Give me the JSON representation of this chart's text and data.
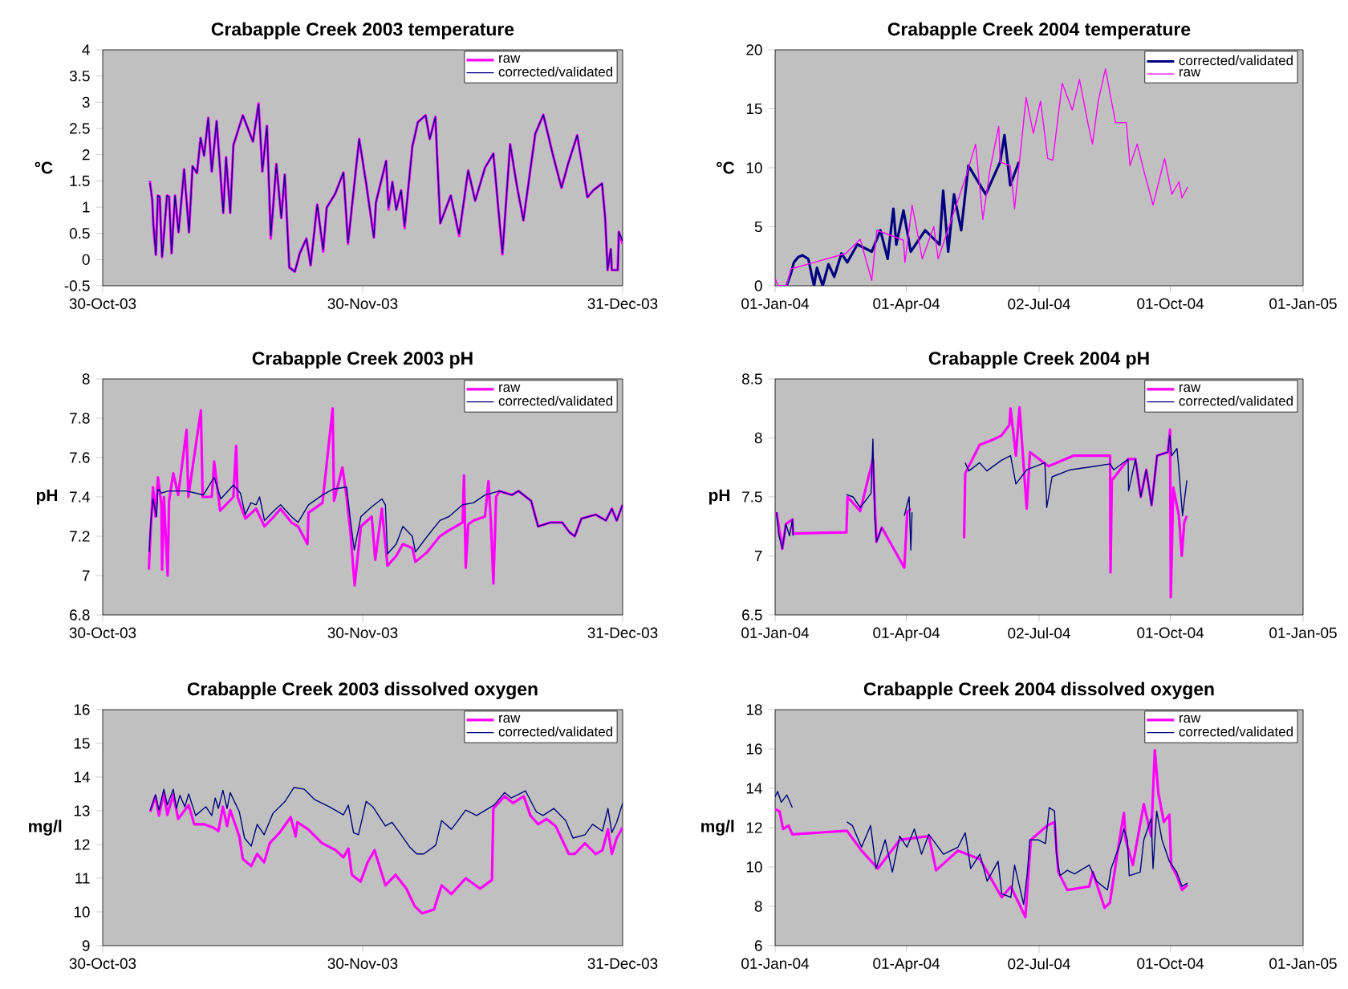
{
  "chart_data": [
    {
      "type": "line",
      "title": "Crabapple Creek 2003 temperature",
      "ylabel": "°C",
      "legend": "top right",
      "xlim": [
        "2003-10-30",
        "2003-12-31"
      ],
      "xticks": [
        {
          "value": "2003-10-30",
          "label": "30-Oct-03"
        },
        {
          "value": "2003-11-30",
          "label": "30-Nov-03"
        },
        {
          "value": "2003-12-31",
          "label": "31-Dec-03"
        }
      ],
      "ylim": [
        -0.5,
        4
      ],
      "yticks": [
        -0.5,
        0,
        0.5,
        1,
        1.5,
        2,
        2.5,
        3,
        3.5,
        4
      ],
      "x": [
        "2003-11-04T15:00",
        "2003-11-04T22:00",
        "2003-11-05T01:00",
        "2003-11-05T08:00",
        "2003-11-05T14:00",
        "2003-11-05T19:00",
        "2003-11-06T02:00",
        "2003-11-06T16:00",
        "2003-11-06T22:00",
        "2003-11-07T05:00",
        "2003-11-07T15:00",
        "2003-11-08T01:00",
        "2003-11-08T09:00",
        "2003-11-08T17:00",
        "2003-11-09T07:00",
        "2003-11-09T17:00",
        "2003-11-10T06:00",
        "2003-11-10T16:00",
        "2003-11-11T02:00",
        "2003-11-11T14:00",
        "2003-11-12T00:00",
        "2003-11-12T14:00",
        "2003-11-13T09:00",
        "2003-11-13T17:00",
        "2003-11-14T05:00",
        "2003-11-14T14:00",
        "2003-11-15T17:00",
        "2003-11-16T22:00",
        "2003-11-17T14:00",
        "2003-11-18T01:00",
        "2003-11-18T14:00",
        "2003-11-19T01:00",
        "2003-11-19T17:00",
        "2003-11-20T07:00",
        "2003-11-20T17:00",
        "2003-11-21T06:00",
        "2003-11-21T22:00",
        "2003-11-22T12:00",
        "2003-11-23T07:00",
        "2003-11-23T19:00",
        "2003-11-24T14:00",
        "2003-11-25T07:00",
        "2003-11-25T17:00",
        "2003-11-26T17:00",
        "2003-11-27T17:00",
        "2003-11-28T06:00",
        "2003-11-29T14:00",
        "2003-11-30T10:00",
        "2003-12-01T08:00",
        "2003-12-01T14:00",
        "2003-12-02T19:00",
        "2003-12-03T02:00",
        "2003-12-03T13:00",
        "2003-12-04T00:00",
        "2003-12-04T14:00",
        "2003-12-05T00:00",
        "2003-12-05T22:00",
        "2003-12-06T14:00",
        "2003-12-07T12:00",
        "2003-12-08T00:00",
        "2003-12-08T16:00",
        "2003-12-09T06:00",
        "2003-12-10T12:00",
        "2003-12-11T12:00",
        "2003-12-12T14:00",
        "2003-12-13T10:00",
        "2003-12-14T14:00",
        "2003-12-15T14:00",
        "2003-12-16T16:00",
        "2003-12-17T14:00",
        "2003-12-18T10:00",
        "2003-12-19T04:00",
        "2003-12-20T14:00",
        "2003-12-21T13:00",
        "2003-12-22T17:00",
        "2003-12-23T17:00",
        "2003-12-24T13:00",
        "2003-12-25T14:00",
        "2003-12-26T19:00",
        "2003-12-27T12:00",
        "2003-12-28T13:00",
        "2003-12-28T22:00",
        "2003-12-29T05:00",
        "2003-12-29T14:00",
        "2003-12-29T17:00",
        "2003-12-30T10:00",
        "2003-12-30T13:00",
        "2003-12-31T00:00"
      ],
      "series": [
        {
          "name": "raw",
          "color": "#ff00ff",
          "values": [
            1.5,
            1.12,
            0.65,
            0.09,
            1.22,
            1.2,
            0.05,
            1.22,
            1.2,
            0.12,
            1.22,
            0.52,
            1.12,
            1.72,
            0.52,
            1.78,
            1.65,
            2.32,
            1.98,
            2.7,
            1.68,
            2.64,
            0.89,
            1.95,
            0.89,
            2.18,
            2.75,
            2.25,
            2.98,
            1.68,
            2.55,
            0.4,
            1.82,
            0.79,
            1.62,
            -0.15,
            -0.23,
            0.12,
            0.4,
            -0.11,
            1.05,
            0.15,
            0.99,
            1.25,
            1.66,
            0.3,
            2.3,
            1.45,
            0.42,
            1.09,
            1.88,
            0.95,
            1.48,
            0.95,
            1.32,
            0.6,
            2.15,
            2.62,
            2.75,
            2.3,
            2.72,
            0.69,
            1.22,
            0.45,
            1.7,
            1.12,
            1.75,
            2.02,
            0.1,
            2.2,
            1.38,
            0.75,
            2.4,
            2.76,
            1.98,
            1.37,
            1.85,
            2.37,
            1.19,
            1.32,
            1.45,
            0.79,
            -0.2,
            0.2,
            -0.2,
            -0.2,
            0.53,
            0.3
          ]
        },
        {
          "name": "corrected/validated",
          "color": "#000080",
          "values": [
            1.46,
            1.12,
            0.69,
            0.09,
            1.22,
            1.2,
            0.05,
            1.22,
            1.2,
            0.12,
            1.22,
            0.52,
            1.12,
            1.72,
            0.52,
            1.78,
            1.65,
            2.32,
            1.98,
            2.7,
            1.68,
            2.64,
            0.89,
            1.95,
            0.89,
            2.18,
            2.75,
            2.25,
            2.96,
            1.68,
            2.55,
            0.45,
            1.82,
            0.79,
            1.62,
            -0.15,
            -0.23,
            0.12,
            0.4,
            -0.11,
            1.05,
            0.19,
            0.99,
            1.25,
            1.66,
            0.32,
            2.3,
            1.45,
            0.42,
            1.09,
            1.88,
            0.99,
            1.48,
            0.95,
            1.32,
            0.64,
            2.15,
            2.62,
            2.75,
            2.3,
            2.72,
            0.69,
            1.22,
            0.49,
            1.7,
            1.12,
            1.75,
            2.02,
            0.12,
            2.2,
            1.38,
            0.75,
            2.4,
            2.76,
            1.98,
            1.37,
            1.85,
            2.37,
            1.19,
            1.32,
            1.45,
            0.79,
            -0.2,
            0.2,
            -0.2,
            -0.2,
            0.53,
            0.35
          ]
        }
      ]
    },
    {
      "type": "line",
      "title": "Crabapple Creek 2004 temperature",
      "ylabel": "°C",
      "legend": "top right",
      "xlim": [
        "2004-01-01",
        "2005-01-01"
      ],
      "xticks": [
        {
          "value": "2004-01-01",
          "label": "01-Jan-04"
        },
        {
          "value": "2004-04-01",
          "label": "01-Apr-04"
        },
        {
          "value": "2004-07-02",
          "label": "02-Jul-04"
        },
        {
          "value": "2004-10-01",
          "label": "01-Oct-04"
        },
        {
          "value": "2005-01-01",
          "label": "01-Jan-05"
        }
      ],
      "ylim": [
        0,
        20
      ],
      "yticks": [
        0,
        5,
        10,
        15,
        20
      ],
      "series": [
        {
          "name": "corrected/validated",
          "color": "#000080",
          "x": [
            "2004-01-09",
            "2004-01-12",
            "2004-01-14",
            "2004-01-17",
            "2004-01-20",
            "2004-01-24",
            "2004-01-28",
            "2004-01-30",
            "2004-02-03",
            "2004-02-07",
            "2004-02-11",
            "2004-02-16",
            "2004-02-20",
            "2004-02-27",
            "2004-03-08",
            "2004-03-14",
            "2004-03-19",
            "2004-03-23",
            "2004-03-25",
            "2004-03-30",
            "2004-04-04",
            "2004-04-14",
            "2004-04-24",
            "2004-04-26T12:00",
            "2004-04-30",
            "2004-05-04",
            "2004-05-09",
            "2004-05-14",
            "2004-05-26",
            "2004-06-05",
            "2004-06-08",
            "2004-06-12",
            "2004-06-18"
          ],
          "values": [
            0,
            1.06,
            1.98,
            2.43,
            2.58,
            2.28,
            0,
            1.52,
            0,
            1.82,
            0.76,
            2.74,
            1.98,
            3.5,
            2.89,
            4.71,
            2.28,
            6.53,
            3.5,
            6.38,
            2.89,
            4.71,
            3.5,
            8.05,
            2.89,
            7.75,
            4.71,
            10.18,
            7.75,
            10.49,
            12.77,
            8.51,
            10.49
          ]
        },
        {
          "name": "raw",
          "color": "#ff00ff",
          "x": [
            "2004-01-01",
            "2004-01-03",
            "2004-01-09",
            "2004-01-12",
            "2004-02-19",
            "2004-02-29",
            "2004-03-08",
            "2004-03-11T12:00",
            "2004-03-30",
            "2004-03-31",
            "2004-04-05",
            "2004-04-12",
            "2004-04-20",
            "2004-04-23",
            "2004-05-11T12:00",
            "2004-05-19",
            "2004-05-24",
            "2004-05-29",
            "2004-06-04",
            "2004-06-05",
            "2004-06-12",
            "2004-06-15",
            "2004-06-23",
            "2004-06-28",
            "2004-07-03",
            "2004-07-08",
            "2004-07-11T12:00",
            "2004-07-18",
            "2004-07-25",
            "2004-07-30",
            "2004-08-05",
            "2004-08-08",
            "2004-08-12",
            "2004-08-17",
            "2004-08-20",
            "2004-08-24",
            "2004-08-31T12:00",
            "2004-09-03",
            "2004-09-08",
            "2004-09-13",
            "2004-09-19",
            "2004-09-27",
            "2004-10-02",
            "2004-10-07",
            "2004-10-09",
            "2004-10-13"
          ],
          "values": [
            0.61,
            0,
            0,
            1.43,
            2.74,
            3.95,
            0.46,
            4.71,
            3.86,
            1.98,
            6.84,
            2.28,
            5.02,
            2.28,
            8.97,
            12.0,
            5.62,
            9.88,
            13.53,
            10.49,
            10.18,
            6.53,
            15.96,
            12.92,
            15.65,
            10.79,
            10.64,
            17.17,
            14.89,
            17.48,
            13.68,
            12.01,
            15.65,
            18.39,
            16.41,
            13.83,
            13.83,
            10.18,
            12.01,
            9.57,
            6.84,
            10.79,
            7.75,
            8.81,
            7.45,
            8.36
          ]
        }
      ]
    },
    {
      "type": "line",
      "title": "Crabapple Creek 2003 pH",
      "ylabel": "pH",
      "legend": "top right",
      "xlim": [
        "2003-10-30",
        "2003-12-31"
      ],
      "xticks": [
        {
          "value": "2003-10-30",
          "label": "30-Oct-03"
        },
        {
          "value": "2003-11-30",
          "label": "30-Nov-03"
        },
        {
          "value": "2003-12-31",
          "label": "31-Dec-03"
        }
      ],
      "ylim": [
        6.8,
        8
      ],
      "yticks": [
        6.8,
        7,
        7.2,
        7.4,
        7.6,
        7.8,
        8
      ],
      "series": [
        {
          "name": "raw",
          "color": "#ff00ff",
          "x": [
            "2003-11-04T12:00",
            "2003-11-04T17:00",
            "2003-11-05T00:00",
            "2003-11-05T07:00",
            "2003-11-05T14:00",
            "2003-11-06T00:00",
            "2003-11-06T02:00",
            "2003-11-06T07:00",
            "2003-11-06T18:00",
            "2003-11-06T22:00",
            "2003-11-07T10:00",
            "2003-11-08T00:00",
            "2003-11-09T00:00",
            "2003-11-09T05:00",
            "2003-11-10T17:00",
            "2003-11-10T22:00",
            "2003-11-12T00:00",
            "2003-11-12T07:00",
            "2003-11-13T00:00",
            "2003-11-14T14:00",
            "2003-11-14T22:00",
            "2003-11-15T02:00",
            "2003-11-16T00:00",
            "2003-11-17T07:00",
            "2003-11-18T07:00",
            "2003-11-19T10:00",
            "2003-11-20T05:00",
            "2003-11-21T12:00",
            "2003-11-22T07:00",
            "2003-11-23T10:00",
            "2003-11-23T13:00",
            "2003-11-25T05:00",
            "2003-11-26T10:00",
            "2003-11-26T14:00",
            "2003-11-27T14:00",
            "2003-11-28T02:00",
            "2003-11-28T13:00",
            "2003-11-29T01:00",
            "2003-11-29T19:00",
            "2003-12-01T02:00",
            "2003-12-01T12:00",
            "2003-12-02T07:00",
            "2003-12-02T23:00",
            "2003-12-04T00:00",
            "2003-12-04T19:00",
            "2003-12-05T22:00",
            "2003-12-06T07:00",
            "2003-12-07T17:00",
            "2003-12-09T05:00",
            "2003-12-10T07:00",
            "2003-12-11T22:00",
            "2003-12-12T02:00",
            "2003-12-12T07:00",
            "2003-12-12T14:00",
            "2003-12-13T05:00",
            "2003-12-14T14:00",
            "2003-12-15T00:00",
            "2003-12-15T07:00",
            "2003-12-15T14:00",
            "2003-12-15T22:00",
            "2003-12-16T07:00",
            "2003-12-17T19:00",
            "2003-12-18T14:00",
            "2003-12-20T02:00",
            "2003-12-20T22:00",
            "2003-12-22T10:00",
            "2003-12-23T19:00",
            "2003-12-24T16:00",
            "2003-12-25T07:00",
            "2003-12-26T02:00",
            "2003-12-27T19:00",
            "2003-12-29T00:00",
            "2003-12-29T17:00",
            "2003-12-30T07:00",
            "2003-12-31T00:00"
          ],
          "values": [
            7.03,
            7.22,
            7.45,
            7.3,
            7.5,
            7.36,
            7.03,
            7.4,
            7.0,
            7.38,
            7.52,
            7.41,
            7.74,
            7.4,
            7.84,
            7.4,
            7.4,
            7.58,
            7.33,
            7.4,
            7.66,
            7.4,
            7.29,
            7.34,
            7.25,
            7.3,
            7.34,
            7.27,
            7.25,
            7.16,
            7.32,
            7.37,
            7.85,
            7.38,
            7.55,
            7.4,
            7.22,
            6.95,
            7.25,
            7.3,
            7.08,
            7.34,
            7.05,
            7.1,
            7.16,
            7.14,
            7.07,
            7.12,
            7.2,
            7.23,
            7.27,
            7.51,
            7.04,
            7.26,
            7.28,
            7.3,
            7.48,
            7.27,
            6.96,
            7.4,
            7.43,
            7.41,
            7.43,
            7.38,
            7.25,
            7.27,
            7.27,
            7.22,
            7.2,
            7.29,
            7.31,
            7.28,
            7.34,
            7.28,
            7.36
          ]
        },
        {
          "name": "corrected/validated",
          "color": "#000080",
          "x": [
            "2003-11-04T13:00",
            "2003-11-04T18:00",
            "2003-11-05T00:00",
            "2003-11-05T10:00",
            "2003-11-05T14:00",
            "2003-11-06T00:00",
            "2003-11-06T20:00",
            "2003-11-08T23:00",
            "2003-11-11T00:00",
            "2003-11-12T07:00",
            "2003-11-13T02:00",
            "2003-11-14T14:00",
            "2003-11-15T10:00",
            "2003-11-16T00:00",
            "2003-11-16T16:00",
            "2003-11-17T07:00",
            "2003-11-17T17:00",
            "2003-11-18T07:00",
            "2003-11-19T10:00",
            "2003-11-20T05:00",
            "2003-11-21T12:00",
            "2003-11-22T07:00",
            "2003-11-23T13:00",
            "2003-11-25T05:00",
            "2003-11-26T12:00",
            "2003-11-28T02:00",
            "2003-11-28T13:00",
            "2003-11-29T00:00",
            "2003-11-29T19:00",
            "2003-12-01T02:00",
            "2003-12-02T07:00",
            "2003-12-02T17:00",
            "2003-12-02T23:00",
            "2003-12-04T00:00",
            "2003-12-04T19:00",
            "2003-12-05T22:00",
            "2003-12-06T07:00",
            "2003-12-07T17:00",
            "2003-12-09T05:00",
            "2003-12-10T07:00",
            "2003-12-11T22:00",
            "2003-12-13T05:00",
            "2003-12-14T14:00",
            "2003-12-16T07:00",
            "2003-12-17T19:00",
            "2003-12-18T14:00",
            "2003-12-20T02:00",
            "2003-12-20T22:00",
            "2003-12-22T10:00",
            "2003-12-23T19:00",
            "2003-12-24T16:00",
            "2003-12-25T07:00",
            "2003-12-26T02:00",
            "2003-12-27T19:00",
            "2003-12-29T00:00",
            "2003-12-29T17:00",
            "2003-12-30T07:00",
            "2003-12-31T00:00"
          ],
          "values": [
            7.12,
            7.28,
            7.39,
            7.3,
            7.44,
            7.42,
            7.43,
            7.43,
            7.41,
            7.5,
            7.39,
            7.46,
            7.42,
            7.31,
            7.37,
            7.36,
            7.4,
            7.28,
            7.33,
            7.36,
            7.3,
            7.27,
            7.36,
            7.41,
            7.44,
            7.45,
            7.28,
            7.13,
            7.3,
            7.35,
            7.39,
            7.36,
            7.11,
            7.16,
            7.25,
            7.2,
            7.12,
            7.2,
            7.28,
            7.3,
            7.36,
            7.37,
            7.41,
            7.43,
            7.41,
            7.43,
            7.38,
            7.25,
            7.27,
            7.27,
            7.22,
            7.2,
            7.29,
            7.31,
            7.28,
            7.34,
            7.28,
            7.36
          ]
        }
      ]
    },
    {
      "type": "line",
      "title": "Crabapple Creek 2004 pH",
      "ylabel": "pH",
      "legend": "top right",
      "xlim": [
        "2004-01-01",
        "2005-01-01"
      ],
      "xticks": [
        {
          "value": "2004-01-01",
          "label": "01-Jan-04"
        },
        {
          "value": "2004-04-01",
          "label": "01-Apr-04"
        },
        {
          "value": "2004-07-02",
          "label": "02-Jul-04"
        },
        {
          "value": "2004-10-01",
          "label": "01-Oct-04"
        },
        {
          "value": "2005-01-01",
          "label": "01-Jan-05"
        }
      ],
      "ylim": [
        6.5,
        8.5
      ],
      "yticks": [
        6.5,
        7,
        7.5,
        8,
        8.5
      ],
      "series": [
        {
          "name": "raw",
          "color": "#ff00ff",
          "x": [
            "2004-01-02",
            "2004-01-06",
            "2004-01-08T12:00",
            "2004-01-13",
            "2004-01-13T12:00",
            "2004-02-19T10:00",
            "2004-02-20T05:00",
            "2004-02-29",
            "2004-03-08T19:00",
            "2004-03-11T07:00",
            "2004-03-15",
            "2004-03-30T14:00",
            "2004-04-01T14:00",
            "2004-04-04T02:00",
            "2004-04-20",
            "2004-05-11",
            "2004-05-11T19:00",
            "2004-05-21T19:00",
            "2004-05-31T22:00",
            "2004-06-05T22:00",
            "2004-06-11T10:00",
            "2004-06-12T05:00",
            "2004-06-15T22:00",
            "2004-06-18T10:00",
            "2004-06-23T10:00",
            "2004-06-25T17:00",
            "2004-07-08T12:00",
            "2004-07-26T02:00",
            "2004-08-20T05:00",
            "2004-08-20T12:00",
            "2004-08-21T10:00",
            "2004-09-01T17:00",
            "2004-09-06T19:00",
            "2004-09-10T12:00",
            "2004-09-14T07:00",
            "2004-09-18",
            "2004-09-21T19:00",
            "2004-09-29T07:00",
            "2004-09-30T19:00",
            "2004-10-01T07:00",
            "2004-10-03",
            "2004-10-06T22:00",
            "2004-10-08T22:00",
            "2004-10-10T14:00",
            "2004-10-12T10:00"
          ],
          "values": [
            7.37,
            7.06,
            7.27,
            7.31,
            7.19,
            7.2,
            7.5,
            7.38,
            7.82,
            7.12,
            7.24,
            6.9,
            7.37,
            7.4,
            null,
            7.15,
            7.7,
            7.94,
            7.99,
            8.02,
            8.11,
            8.25,
            7.85,
            8.26,
            7.4,
            7.88,
            7.76,
            7.85,
            7.85,
            6.86,
            7.64,
            7.82,
            7.82,
            7.5,
            7.73,
            7.43,
            7.85,
            7.88,
            8.07,
            6.65,
            7.58,
            7.34,
            7.0,
            7.28,
            7.34
          ]
        },
        {
          "name": "corrected/validated",
          "color": "#000080",
          "x": [
            "2004-01-02",
            "2004-01-03T12:00",
            "2004-01-06",
            "2004-01-08T12:00",
            "2004-01-11",
            "2004-01-13",
            "2004-01-13T12:00",
            "2004-02-01",
            "2004-02-19T10:00",
            "2004-02-24",
            "2004-02-29",
            "2004-03-07T12:00",
            "2004-03-08T19:00",
            "2004-03-10",
            "2004-03-11T07:00",
            "2004-03-15",
            "2004-03-25",
            "2004-03-30T14:00",
            "2004-04-02T22:00",
            "2004-04-04T02:00",
            "2004-04-04T22:00",
            "2004-04-20",
            "2004-05-11T19:00",
            "2004-05-14T07:00",
            "2004-05-21T19:00",
            "2004-05-26T19:00",
            "2004-06-05T22:00",
            "2004-06-12T05:00",
            "2004-06-15T22:00",
            "2004-06-23T10:00",
            "2004-07-06",
            "2004-07-07T07:00",
            "2004-07-11",
            "2004-07-23T14:00",
            "2004-08-10T02:00",
            "2004-08-20T05:00",
            "2004-08-22T17:00",
            "2004-09-01T17:00",
            "2004-09-02",
            "2004-09-06T19:00",
            "2004-09-10T12:00",
            "2004-09-14T07:00",
            "2004-09-18",
            "2004-09-21T19:00",
            "2004-09-29T07:00",
            "2004-09-30T14:00",
            "2004-10-01T22:00",
            "2004-10-05T14:00",
            "2004-10-06T22:00",
            "2004-10-08T02:00",
            "2004-10-09T10:00",
            "2004-10-12T10:00"
          ],
          "values": [
            7.37,
            7.18,
            7.06,
            7.27,
            7.17,
            7.31,
            7.17,
            null,
            7.52,
            7.5,
            7.41,
            7.53,
            7.99,
            7.34,
            7.12,
            7.24,
            null,
            7.34,
            7.5,
            7.05,
            7.37,
            null,
            7.79,
            7.72,
            7.79,
            7.72,
            7.81,
            7.85,
            7.61,
            7.73,
            7.79,
            7.41,
            7.67,
            7.73,
            7.76,
            7.78,
            7.73,
            7.82,
            7.55,
            7.82,
            7.5,
            7.73,
            7.43,
            7.85,
            7.88,
            8.02,
            7.85,
            7.91,
            7.73,
            7.55,
            7.34,
            7.64
          ]
        }
      ]
    },
    {
      "type": "line",
      "title": "Crabapple Creek 2003 dissolved oxygen",
      "ylabel": "mg/l",
      "legend": "top right",
      "xlim": [
        "2003-10-30",
        "2003-12-31"
      ],
      "xticks": [
        {
          "value": "2003-10-30",
          "label": "30-Oct-03"
        },
        {
          "value": "2003-11-30",
          "label": "30-Nov-03"
        },
        {
          "value": "2003-12-31",
          "label": "31-Dec-03"
        }
      ],
      "ylim": [
        9,
        16
      ],
      "yticks": [
        9,
        10,
        11,
        12,
        13,
        14,
        15,
        16
      ],
      "series": [
        {
          "name": "raw",
          "color": "#ff00ff",
          "x": [
            "2003-11-04T16:00",
            "2003-11-05T07:00",
            "2003-11-05T17:00",
            "2003-11-06T07:00",
            "2003-11-06T17:00",
            "2003-11-07T10:00",
            "2003-11-08T00:00",
            "2003-11-09T06:00",
            "2003-11-09T22:00",
            "2003-11-11T02:00",
            "2003-11-12T05:00",
            "2003-11-12T19:00",
            "2003-11-13T08:00",
            "2003-11-13T20:00",
            "2003-11-14T05:00",
            "2003-11-15T07:00",
            "2003-11-15T17:00",
            "2003-11-16T17:00",
            "2003-11-17T10:00",
            "2003-11-18T06:00",
            "2003-11-18T22:00",
            "2003-11-20T02:00",
            "2003-11-21T10:00",
            "2003-11-22T00:00",
            "2003-11-22T05:00",
            "2003-11-23T12:00",
            "2003-11-25T04:00",
            "2003-11-26T19:00",
            "2003-11-27T17:00",
            "2003-11-28T07:00",
            "2003-11-28T17:00",
            "2003-11-29T18:00",
            "2003-11-30T14:00",
            "2003-12-01T10:00",
            "2003-12-02T17:00",
            "2003-12-03T22:00",
            "2003-12-05T05:00",
            "2003-12-06T05:00",
            "2003-12-07T02:00",
            "2003-12-08T12:00",
            "2003-12-09T10:00",
            "2003-12-10T14:00",
            "2003-12-12T07:00",
            "2003-12-14T00:00",
            "2003-12-15T10:00",
            "2003-12-15T14:00",
            "2003-12-16T22:00",
            "2003-12-17T22:00",
            "2003-12-19T05:00",
            "2003-12-20T00:00",
            "2003-12-20T22:00",
            "2003-12-21T22:00",
            "2003-12-23T00:00",
            "2003-12-24T14:00",
            "2003-12-25T07:00",
            "2003-12-26T12:00",
            "2003-12-27T19:00",
            "2003-12-28T14:00",
            "2003-12-29T06:00",
            "2003-12-29T17:00",
            "2003-12-30T07:00",
            "2003-12-31T00:00"
          ],
          "values": [
            12.97,
            13.43,
            12.86,
            13.54,
            12.88,
            13.48,
            12.76,
            13.17,
            12.6,
            12.6,
            12.5,
            12.4,
            13.12,
            12.55,
            13.02,
            12.24,
            11.57,
            11.36,
            11.72,
            11.47,
            12.04,
            12.35,
            12.81,
            12.24,
            12.66,
            12.45,
            12.04,
            11.83,
            11.62,
            11.88,
            11.1,
            10.9,
            11.47,
            11.83,
            10.79,
            11.1,
            10.69,
            10.17,
            9.96,
            10.07,
            10.79,
            10.53,
            11.0,
            10.69,
            10.95,
            13.07,
            13.43,
            13.23,
            13.43,
            12.86,
            12.6,
            12.76,
            12.55,
            11.72,
            11.72,
            12.04,
            11.72,
            11.83,
            12.45,
            11.72,
            12.19,
            12.5
          ]
        },
        {
          "name": "corrected/validated",
          "color": "#000080",
          "x": [
            "2003-11-04T16:00",
            "2003-11-05T07:00",
            "2003-11-05T17:00",
            "2003-11-06T07:00",
            "2003-11-06T17:00",
            "2003-11-07T10:00",
            "2003-11-07T19:00",
            "2003-11-08T05:00",
            "2003-11-08T19:00",
            "2003-11-09T06:00",
            "2003-11-10T02:00",
            "2003-11-11T07:00",
            "2003-11-12T00:00",
            "2003-11-12T10:00",
            "2003-11-12T19:00",
            "2003-11-13T08:00",
            "2003-11-13T20:00",
            "2003-11-14T05:00",
            "2003-11-15T07:00",
            "2003-11-15T22:00",
            "2003-11-16T17:00",
            "2003-11-17T10:00",
            "2003-11-18T06:00",
            "2003-11-19T07:00",
            "2003-11-20T18:00",
            "2003-11-21T19:00",
            "2003-11-23T01:00",
            "2003-11-24T07:00",
            "2003-11-26T00:00",
            "2003-11-27T17:00",
            "2003-11-28T07:00",
            "2003-11-28T22:00",
            "2003-11-29T12:00",
            "2003-11-30T10:00",
            "2003-12-01T05:00",
            "2003-12-02T17:00",
            "2003-12-03T12:00",
            "2003-12-04T14:00",
            "2003-12-05T14:00",
            "2003-12-06T11:00",
            "2003-12-07T07:00",
            "2003-12-08T17:00",
            "2003-12-09T10:00",
            "2003-12-10T14:00",
            "2003-12-12T07:00",
            "2003-12-13T14:00",
            "2003-12-15T16:00",
            "2003-12-16T22:00",
            "2003-12-17T17:00",
            "2003-12-19T10:00",
            "2003-12-20T17:00",
            "2003-12-21T12:00",
            "2003-12-22T19:00",
            "2003-12-24T05:00",
            "2003-12-25T02:00",
            "2003-12-26T12:00",
            "2003-12-27T10:00",
            "2003-12-28T14:00",
            "2003-12-29T06:00",
            "2003-12-29T17:00",
            "2003-12-30T07:00",
            "2003-12-31T00:00"
          ],
          "values": [
            13.02,
            13.48,
            13.02,
            13.64,
            13.17,
            13.64,
            13.07,
            13.46,
            13.12,
            13.5,
            12.86,
            13.12,
            12.86,
            13.38,
            13.07,
            13.61,
            13.07,
            13.54,
            12.97,
            12.19,
            11.95,
            12.6,
            12.29,
            12.92,
            13.28,
            13.69,
            13.64,
            13.33,
            13.12,
            12.88,
            13.17,
            12.35,
            12.29,
            13.28,
            13.12,
            12.55,
            12.66,
            12.29,
            11.93,
            11.72,
            11.72,
            11.98,
            12.71,
            12.45,
            13.02,
            12.86,
            13.17,
            13.54,
            13.38,
            13.59,
            12.97,
            12.86,
            13.07,
            12.71,
            12.19,
            12.29,
            12.6,
            12.4,
            13.07,
            12.35,
            12.66,
            13.23
          ]
        }
      ]
    },
    {
      "type": "line",
      "title": "Crabapple Creek 2004 dissolved oxygen",
      "ylabel": "mg/l",
      "legend": "top right",
      "xlim": [
        "2004-01-01",
        "2005-01-01"
      ],
      "xticks": [
        {
          "value": "2004-01-01",
          "label": "01-Jan-04"
        },
        {
          "value": "2004-04-01",
          "label": "01-Apr-04"
        },
        {
          "value": "2004-07-02",
          "label": "02-Jul-04"
        },
        {
          "value": "2004-10-01",
          "label": "01-Oct-04"
        },
        {
          "value": "2005-01-01",
          "label": "01-Jan-05"
        }
      ],
      "ylim": [
        6,
        18
      ],
      "yticks": [
        6,
        8,
        10,
        12,
        14,
        16,
        18
      ],
      "series": [
        {
          "name": "raw",
          "color": "#ff00ff",
          "x": [
            "2004-01-01",
            "2004-01-04",
            "2004-01-06T14:00",
            "2004-01-10T07:00",
            "2004-01-12T22:00",
            "2004-02-19T19:00",
            "2004-02-29T22:00",
            "2004-03-12T05:00",
            "2004-03-27T10:00",
            "2004-04-16T14:00",
            "2004-04-21T14:00",
            "2004-05-06T19:00",
            "2004-05-21T22:00",
            "2004-06-06T02:00",
            "2004-06-12T10:00",
            "2004-06-22T12:00",
            "2004-06-26T07:00",
            "2004-07-07T17:00",
            "2004-07-12T17:00",
            "2004-07-15T07:00",
            "2004-07-21T14:00",
            "2004-08-05T17:00",
            "2004-08-08T07:00",
            "2004-08-16T10:00",
            "2004-08-20T02:00",
            "2004-08-25T22:00",
            "2004-08-29T19:00",
            "2004-08-31",
            "2004-09-05",
            "2004-09-12T14:00",
            "2004-09-17T17:00",
            "2004-09-20T05:00",
            "2004-09-22T17:00",
            "2004-09-26T12:00",
            "2004-09-30T07:00",
            "2004-10-01T14:00",
            "2004-10-05T10:00",
            "2004-10-09T02:00",
            "2004-10-12T22:00"
          ],
          "values": [
            12.93,
            12.84,
            11.93,
            12.11,
            11.66,
            11.84,
            10.83,
            9.92,
            11.38,
            11.57,
            9.83,
            10.83,
            10.4,
            8.46,
            9.0,
            7.46,
            11.38,
            12.11,
            12.29,
            9.74,
            8.83,
            9.01,
            9.74,
            7.92,
            8.19,
            11.01,
            12.75,
            11.38,
            10.1,
            13.2,
            11.57,
            15.94,
            13.75,
            12.29,
            12.66,
            10.1,
            9.56,
            8.83,
            9.1
          ]
        },
        {
          "name": "corrected/validated",
          "color": "#000080",
          "x": [
            "2004-01-01",
            "2004-01-02T19:00",
            "2004-01-05T07:00",
            "2004-01-09T02:00",
            "2004-01-12T22:00",
            "2004-02-01",
            "2004-02-19T19:00",
            "2004-02-23T12:00",
            "2004-02-29T22:00",
            "2004-03-07T05:00",
            "2004-03-11",
            "2004-03-17T07:00",
            "2004-03-22T07:00",
            "2004-03-27T10:00",
            "2004-04-01T10:00",
            "2004-04-06T12:00",
            "2004-04-11T12:00",
            "2004-04-16T14:00",
            "2004-04-26T17:00",
            "2004-05-06T19:00",
            "2004-05-11T19:00",
            "2004-05-15T14:00",
            "2004-05-21T22:00",
            "2004-05-27",
            "2004-06-03T14:00",
            "2004-06-06T02:00",
            "2004-06-12T10:00",
            "2004-06-15",
            "2004-06-21T07:00",
            "2004-06-23T19:00",
            "2004-06-25T14:00",
            "2004-07-01T10:00",
            "2004-07-06T10:00",
            "2004-07-09",
            "2004-07-12T17:00",
            "2004-07-14",
            "2004-07-16T12:00",
            "2004-07-21T14:00",
            "2004-07-26T14:00",
            "2004-08-05T17:00",
            "2004-08-10T19:00",
            "2004-08-18T10:00",
            "2004-08-20T22:00",
            "2004-08-27T05:00",
            "2004-08-29T19:00",
            "2004-09-01T05:00",
            "2004-09-02T12:00",
            "2004-09-10T02:00",
            "2004-09-12T14:00",
            "2004-09-17T17:00",
            "2004-09-19",
            "2004-09-21T12:00",
            "2004-09-25T05:00",
            "2004-09-30T07:00",
            "2004-10-05T10:00",
            "2004-10-09T02:00",
            "2004-10-12T22:00"
          ],
          "values": [
            13.57,
            13.84,
            13.29,
            13.66,
            13.02,
            null,
            12.29,
            12.11,
            11.01,
            12.11,
            9.92,
            11.38,
            9.74,
            11.57,
            11.01,
            11.93,
            10.65,
            11.66,
            10.65,
            11.01,
            11.74,
            9.92,
            10.65,
            9.28,
            10.29,
            8.64,
            8.46,
            10.1,
            8.1,
            9.65,
            11.38,
            11.38,
            11.19,
            13.02,
            12.84,
            10.65,
            9.56,
            9.83,
            9.65,
            10.1,
            9.28,
            8.83,
            9.92,
            11.19,
            11.93,
            11.38,
            9.56,
            9.74,
            11.38,
            12.47,
            9.92,
            12.84,
            11.38,
            10.29,
            9.74,
            9.01,
            9.19
          ]
        }
      ]
    }
  ]
}
